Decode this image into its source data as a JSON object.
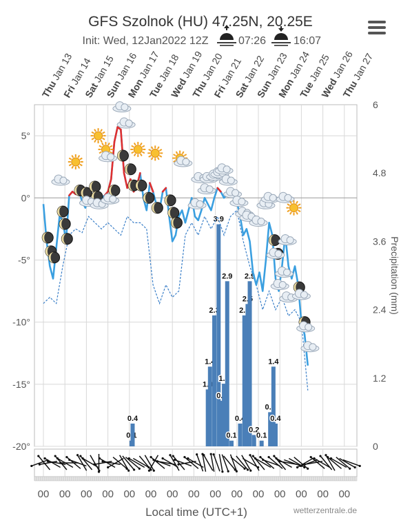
{
  "header": {
    "title": "GFS Szolnok (HU) 47.25N, 20.25E",
    "init": "Init: Wed, 12Jan2022 12Z",
    "sunrise": "07:26",
    "sunset": "16:07"
  },
  "menu_icon": "hamburger-menu-icon",
  "footer": {
    "xlabel": "Local time (UTC+1)",
    "credit": "wetterzentrale.de"
  },
  "colors": {
    "temperature_line": "#3a9fe0",
    "temperature_warm": "#e03030",
    "dewpoint_line": "#3a7fc8",
    "precip_bars": "#4a7fb8",
    "grid": "#d8d8d8",
    "axis_text": "#555555"
  },
  "chart_data": {
    "type": "line",
    "days": [
      {
        "dow": "Thu",
        "date": "Jan 13"
      },
      {
        "dow": "Fri",
        "date": "Jan 14"
      },
      {
        "dow": "Sat",
        "date": "Jan 15"
      },
      {
        "dow": "Sun",
        "date": "Jan 16"
      },
      {
        "dow": "Mon",
        "date": "Jan 17"
      },
      {
        "dow": "Tue",
        "date": "Jan 18"
      },
      {
        "dow": "Wed",
        "date": "Jan 19"
      },
      {
        "dow": "Thu",
        "date": "Jan 20"
      },
      {
        "dow": "Fri",
        "date": "Jan 21"
      },
      {
        "dow": "Sat",
        "date": "Jan 22"
      },
      {
        "dow": "Sun",
        "date": "Jan 23"
      },
      {
        "dow": "Mon",
        "date": "Jan 24"
      },
      {
        "dow": "Tue",
        "date": "Jan 25"
      },
      {
        "dow": "Wed",
        "date": "Jan 26"
      },
      {
        "dow": "Thu",
        "date": "Jan 27"
      }
    ],
    "hour_labels": [
      "00",
      "00",
      "00",
      "00",
      "00",
      "00",
      "00",
      "00",
      "00",
      "00",
      "00",
      "00",
      "00",
      "00",
      "00"
    ],
    "y_left": {
      "min": -20,
      "max": 7.5,
      "ticks": [
        -20,
        -15,
        -10,
        -5,
        0,
        5
      ],
      "tick_labels": [
        "-20°",
        "-15°",
        "-10°",
        "-5°",
        "0°",
        "5°"
      ]
    },
    "y_right": {
      "label": "Precipitation (mm)",
      "min": 0,
      "max": 6,
      "ticks": [
        0,
        1.2,
        2.4,
        3.6,
        4.8,
        6
      ],
      "tick_labels": [
        "0",
        "1.2",
        "2.4",
        "3.6",
        "4.8",
        "6"
      ]
    },
    "temperature": [
      [
        0.0,
        -0.5
      ],
      [
        0.15,
        -3.5
      ],
      [
        0.3,
        -5.5
      ],
      [
        0.45,
        -6.5
      ],
      [
        0.6,
        -4.0
      ],
      [
        0.75,
        -1.5
      ],
      [
        0.9,
        -1.8
      ],
      [
        1.05,
        -3.5
      ],
      [
        1.2,
        0.2
      ],
      [
        1.35,
        0.5
      ],
      [
        1.5,
        0.3
      ],
      [
        1.65,
        0.6
      ],
      [
        1.8,
        -0.3
      ],
      [
        1.95,
        -0.8
      ],
      [
        2.1,
        0.0
      ],
      [
        2.25,
        0.3
      ],
      [
        2.4,
        -0.2
      ],
      [
        2.55,
        -0.6
      ],
      [
        2.7,
        0.0
      ],
      [
        2.85,
        0.2
      ],
      [
        3.0,
        0.5
      ],
      [
        3.15,
        1.5
      ],
      [
        3.3,
        4.5
      ],
      [
        3.45,
        5.7
      ],
      [
        3.6,
        5.5
      ],
      [
        3.75,
        2.0
      ],
      [
        3.9,
        0.8
      ],
      [
        4.05,
        1.5
      ],
      [
        4.2,
        0.5
      ],
      [
        4.35,
        1.0
      ],
      [
        4.5,
        2.0
      ],
      [
        4.65,
        0.0
      ],
      [
        4.8,
        -1.0
      ],
      [
        4.95,
        1.2
      ],
      [
        5.1,
        0.5
      ],
      [
        5.25,
        -0.5
      ],
      [
        5.4,
        -1.0
      ],
      [
        5.55,
        0.5
      ],
      [
        5.7,
        0.8
      ],
      [
        5.85,
        -1.5
      ],
      [
        6.0,
        -3.5
      ],
      [
        6.15,
        -3.0
      ],
      [
        6.3,
        -1.5
      ],
      [
        6.45,
        -1.0
      ],
      [
        6.6,
        -2.0
      ],
      [
        6.75,
        -1.0
      ],
      [
        6.9,
        0.0
      ],
      [
        7.05,
        -1.5
      ],
      [
        7.2,
        -1.8
      ],
      [
        7.35,
        -1.0
      ],
      [
        7.5,
        0.0
      ],
      [
        7.65,
        -0.5
      ],
      [
        7.8,
        -1.0
      ],
      [
        7.95,
        0.0
      ],
      [
        8.1,
        0.8
      ],
      [
        8.25,
        0.5
      ],
      [
        8.4,
        0.0
      ],
      [
        8.55,
        0.3
      ],
      [
        8.7,
        0.5
      ],
      [
        8.85,
        0.0
      ],
      [
        9.0,
        -0.3
      ],
      [
        9.15,
        -1.5
      ],
      [
        9.3,
        -3.0
      ],
      [
        9.45,
        -2.5
      ],
      [
        9.6,
        -3.5
      ],
      [
        9.75,
        -6.0
      ],
      [
        9.9,
        -7.0
      ],
      [
        10.05,
        -6.0
      ],
      [
        10.2,
        -7.5
      ],
      [
        10.35,
        -5.0
      ],
      [
        10.5,
        -2.0
      ],
      [
        10.65,
        -3.0
      ],
      [
        10.8,
        -6.5
      ],
      [
        10.95,
        -7.5
      ],
      [
        11.1,
        -5.5
      ],
      [
        11.25,
        -3.0
      ],
      [
        11.4,
        -5.5
      ],
      [
        11.55,
        -6.5
      ],
      [
        11.7,
        -5.5
      ],
      [
        11.85,
        -7.0
      ],
      [
        12.0,
        -10.0
      ],
      [
        12.15,
        -11.0
      ],
      [
        12.3,
        -13.5
      ]
    ],
    "dewpoint": [
      [
        0.0,
        -8.5
      ],
      [
        0.3,
        -8.0
      ],
      [
        0.6,
        -8.5
      ],
      [
        0.9,
        -5.5
      ],
      [
        1.2,
        -3.0
      ],
      [
        1.5,
        -2.5
      ],
      [
        1.8,
        -2.8
      ],
      [
        2.1,
        -1.5
      ],
      [
        2.4,
        -2.0
      ],
      [
        2.7,
        -2.5
      ],
      [
        3.0,
        -2.0
      ],
      [
        3.3,
        -2.5
      ],
      [
        3.6,
        -3.0
      ],
      [
        3.9,
        -1.5
      ],
      [
        4.2,
        -2.0
      ],
      [
        4.5,
        -2.0
      ],
      [
        4.8,
        -2.5
      ],
      [
        5.1,
        -7.0
      ],
      [
        5.4,
        -8.5
      ],
      [
        5.7,
        -7.0
      ],
      [
        6.0,
        -8.0
      ],
      [
        6.3,
        -7.5
      ],
      [
        6.6,
        -3.0
      ],
      [
        6.9,
        -2.0
      ],
      [
        7.2,
        -3.0
      ],
      [
        7.5,
        -1.5
      ],
      [
        7.8,
        -2.5
      ],
      [
        8.1,
        -1.5
      ],
      [
        8.4,
        -3.0
      ],
      [
        8.7,
        -1.5
      ],
      [
        9.0,
        -1.0
      ],
      [
        9.3,
        -3.5
      ],
      [
        9.6,
        -5.5
      ],
      [
        9.9,
        -7.0
      ],
      [
        10.2,
        -9.0
      ],
      [
        10.5,
        -7.5
      ],
      [
        10.8,
        -9.0
      ],
      [
        11.1,
        -8.0
      ],
      [
        11.4,
        -9.5
      ],
      [
        11.7,
        -9.0
      ],
      [
        12.0,
        -10.0
      ],
      [
        12.3,
        -15.5
      ]
    ],
    "precipitation": [
      {
        "x": 4.1,
        "mm": 0.1,
        "label": "0.1"
      },
      {
        "x": 4.15,
        "mm": 0.4,
        "label": "0.4"
      },
      {
        "x": 7.65,
        "mm": 1.0,
        "label": "1.0"
      },
      {
        "x": 7.75,
        "mm": 1.4,
        "label": "1.4"
      },
      {
        "x": 7.95,
        "mm": 2.3,
        "label": "2.3"
      },
      {
        "x": 8.15,
        "mm": 3.9,
        "label": "3.9"
      },
      {
        "x": 8.3,
        "mm": 0.8,
        "label": "0.8"
      },
      {
        "x": 8.4,
        "mm": 1.1,
        "label": "1.1"
      },
      {
        "x": 8.55,
        "mm": 2.9,
        "label": "2.9"
      },
      {
        "x": 8.75,
        "mm": 0.1,
        "label": "0.1"
      },
      {
        "x": 9.15,
        "mm": 0.4,
        "label": "0.4"
      },
      {
        "x": 9.35,
        "mm": 2.3,
        "label": "2.3"
      },
      {
        "x": 9.5,
        "mm": 2.5,
        "label": "2.5"
      },
      {
        "x": 9.6,
        "mm": 2.9,
        "label": "2.9"
      },
      {
        "x": 9.8,
        "mm": 0.2,
        "label": "0.2"
      },
      {
        "x": 10.15,
        "mm": 0.1,
        "label": "0.1"
      },
      {
        "x": 10.55,
        "mm": 0.6,
        "label": "0.6"
      },
      {
        "x": 10.7,
        "mm": 1.4,
        "label": "1.4"
      },
      {
        "x": 10.8,
        "mm": 0.4,
        "label": "0.4"
      }
    ],
    "weather_icons": [
      {
        "x": 0.2,
        "t": -3.2,
        "kind": "moon"
      },
      {
        "x": 0.35,
        "t": -4.3,
        "kind": "moon"
      },
      {
        "x": 0.5,
        "t": -4.8,
        "kind": "moon"
      },
      {
        "x": 0.9,
        "t": -1.1,
        "kind": "moon"
      },
      {
        "x": 1.0,
        "t": -2.1,
        "kind": "moon"
      },
      {
        "x": 1.1,
        "t": -3.3,
        "kind": "moon"
      },
      {
        "x": 0.8,
        "t": 1.4,
        "kind": "cloud"
      },
      {
        "x": 1.5,
        "t": 2.9,
        "kind": "sun"
      },
      {
        "x": 1.7,
        "t": 0.6,
        "kind": "moon"
      },
      {
        "x": 2.0,
        "t": 0.4,
        "kind": "moon"
      },
      {
        "x": 2.4,
        "t": 0.9,
        "kind": "moon"
      },
      {
        "x": 2.5,
        "t": 0.1,
        "kind": "moon"
      },
      {
        "x": 2.1,
        "t": -0.3,
        "kind": "cloud"
      },
      {
        "x": 2.6,
        "t": -0.5,
        "kind": "cloud"
      },
      {
        "x": 2.55,
        "t": 5.0,
        "kind": "sun"
      },
      {
        "x": 2.9,
        "t": 3.9,
        "kind": "sun"
      },
      {
        "x": 3.0,
        "t": 3.3,
        "kind": "cloud"
      },
      {
        "x": 3.3,
        "t": 0.6,
        "kind": "moon"
      },
      {
        "x": 3.1,
        "t": -0.1,
        "kind": "cloud"
      },
      {
        "x": 3.65,
        "t": 7.3,
        "kind": "cloud"
      },
      {
        "x": 3.7,
        "t": 3.4,
        "kind": "moon"
      },
      {
        "x": 3.85,
        "t": 6.0,
        "kind": "cloud"
      },
      {
        "x": 4.05,
        "t": 2.3,
        "kind": "moon"
      },
      {
        "x": 4.2,
        "t": 1.0,
        "kind": "moon"
      },
      {
        "x": 4.4,
        "t": 3.9,
        "kind": "sun"
      },
      {
        "x": 4.55,
        "t": 1.0,
        "kind": "moon"
      },
      {
        "x": 4.9,
        "t": 0.0,
        "kind": "moon"
      },
      {
        "x": 5.2,
        "t": 3.6,
        "kind": "sun"
      },
      {
        "x": 5.3,
        "t": -0.8,
        "kind": "moon"
      },
      {
        "x": 5.9,
        "t": -0.2,
        "kind": "moon"
      },
      {
        "x": 6.05,
        "t": -1.2,
        "kind": "moon"
      },
      {
        "x": 6.2,
        "t": -2.0,
        "kind": "moon"
      },
      {
        "x": 6.35,
        "t": 3.2,
        "kind": "sun"
      },
      {
        "x": 6.5,
        "t": 2.9,
        "kind": "cloud"
      },
      {
        "x": 7.3,
        "t": 1.6,
        "kind": "cloud"
      },
      {
        "x": 7.15,
        "t": -0.5,
        "kind": "cloud"
      },
      {
        "x": 7.6,
        "t": 0.7,
        "kind": "cloud"
      },
      {
        "x": 7.7,
        "t": 1.6,
        "kind": "cloud"
      },
      {
        "x": 8.0,
        "t": 1.8,
        "kind": "cloud"
      },
      {
        "x": 8.2,
        "t": 2.0,
        "kind": "cloud"
      },
      {
        "x": 8.4,
        "t": 2.3,
        "kind": "cloud"
      },
      {
        "x": 8.6,
        "t": 1.4,
        "kind": "cloud"
      },
      {
        "x": 8.8,
        "t": 0.4,
        "kind": "cloud"
      },
      {
        "x": 9.1,
        "t": -0.3,
        "kind": "cloud"
      },
      {
        "x": 9.35,
        "t": -1.2,
        "kind": "cloud"
      },
      {
        "x": 9.55,
        "t": -1.5,
        "kind": "cloud"
      },
      {
        "x": 10.0,
        "t": -1.9,
        "kind": "cloud"
      },
      {
        "x": 10.35,
        "t": -0.5,
        "kind": "cloud"
      },
      {
        "x": 10.55,
        "t": 0.0,
        "kind": "cloud"
      },
      {
        "x": 10.75,
        "t": -3.4,
        "kind": "moon"
      },
      {
        "x": 10.9,
        "t": -4.5,
        "kind": "moon"
      },
      {
        "x": 11.25,
        "t": 0.0,
        "kind": "cloud"
      },
      {
        "x": 11.35,
        "t": -3.4,
        "kind": "cloud"
      },
      {
        "x": 10.8,
        "t": -4.5,
        "kind": "cloud"
      },
      {
        "x": 11.0,
        "t": -7.0,
        "kind": "cloud"
      },
      {
        "x": 11.2,
        "t": -6.0,
        "kind": "cloud"
      },
      {
        "x": 11.4,
        "t": -8.0,
        "kind": "cloud"
      },
      {
        "x": 11.65,
        "t": -0.8,
        "kind": "sun"
      },
      {
        "x": 11.9,
        "t": -7.2,
        "kind": "moon"
      },
      {
        "x": 12.0,
        "t": -7.8,
        "kind": "cloud"
      },
      {
        "x": 12.15,
        "t": -10.0,
        "kind": "moon"
      },
      {
        "x": 12.2,
        "t": -10.4,
        "kind": "cloud"
      },
      {
        "x": 12.4,
        "t": -12.0,
        "kind": "cloud"
      }
    ],
    "wind_directions_deg": [
      250,
      320,
      260,
      300,
      280,
      320,
      300,
      270,
      310,
      290,
      330,
      320,
      300,
      150,
      180,
      260,
      300,
      280,
      240,
      130,
      150,
      140,
      130,
      300,
      120,
      140,
      150,
      210,
      310,
      290,
      280,
      300,
      330,
      320,
      290,
      260,
      310,
      300,
      340,
      350,
      330,
      350,
      340,
      170,
      160,
      140,
      160,
      130,
      140,
      150,
      120,
      330,
      320,
      300,
      310,
      290,
      310,
      320,
      300,
      280,
      110,
      120,
      130,
      240,
      250,
      260,
      310,
      300,
      320,
      330,
      310,
      300,
      130,
      120,
      110
    ]
  }
}
